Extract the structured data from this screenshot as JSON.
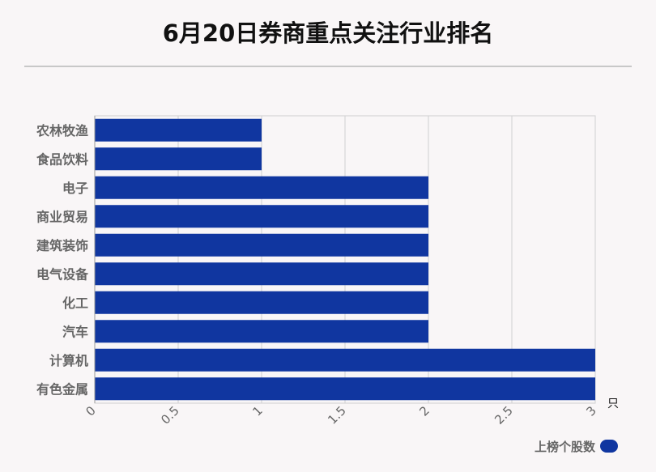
{
  "title": "6月20日券商重点关注行业排名",
  "chart_data": {
    "type": "bar",
    "orientation": "horizontal",
    "categories": [
      "农林牧渔",
      "食品饮料",
      "电子",
      "商业贸易",
      "建筑装饰",
      "电气设备",
      "化工",
      "汽车",
      "计算机",
      "有色金属"
    ],
    "series": [
      {
        "name": "上榜个股数",
        "values": [
          1,
          1,
          2,
          2,
          2,
          2,
          2,
          2,
          3,
          3
        ]
      }
    ],
    "xlim": [
      0,
      3
    ],
    "xticks": [
      "0",
      "0.5",
      "1",
      "1.5",
      "2",
      "2.5",
      "3"
    ],
    "unit": "只",
    "grid": true,
    "legend_position": "bottom-right",
    "bar_color": "#1036a0"
  }
}
